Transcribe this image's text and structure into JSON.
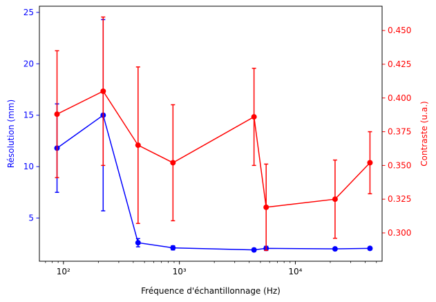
{
  "chart_data": {
    "type": "line",
    "xlabel": "Fréquence d'échantillonnage (Hz)",
    "x_scale": "log",
    "xlim": [
      62,
      56000
    ],
    "x_ticks": [
      {
        "value": 100,
        "label": "10²"
      },
      {
        "value": 1000,
        "label": "10³"
      },
      {
        "value": 10000,
        "label": "10⁴"
      }
    ],
    "grid": false,
    "legend": "none",
    "left_axis": {
      "label": "Résolution (mm)",
      "color": "#0000ff",
      "ylim": [
        0.8,
        25.6
      ],
      "ticks": [
        5,
        10,
        15,
        20,
        25
      ]
    },
    "right_axis": {
      "label": "Contraste (u.a.)",
      "color": "#ff0000",
      "ylim": [
        0.279,
        0.468
      ],
      "ticks": [
        0.3,
        0.325,
        0.35,
        0.375,
        0.4,
        0.425,
        0.45
      ],
      "tick_labels": [
        "0.300",
        "0.325",
        "0.350",
        "0.375",
        "0.400",
        "0.425",
        "0.450"
      ]
    },
    "series": [
      {
        "axis": "left",
        "color": "#0000ff",
        "x": [
          88,
          220,
          440,
          880,
          4400,
          5600,
          22000,
          44000
        ],
        "y": [
          11.8,
          15.0,
          2.6,
          2.1,
          1.9,
          2.05,
          2.0,
          2.05
        ],
        "err": [
          4.3,
          9.3,
          0.4,
          0.2,
          0.15,
          0.2,
          0.15,
          0.15
        ]
      },
      {
        "axis": "right",
        "color": "#ff0000",
        "x": [
          88,
          220,
          440,
          880,
          4400,
          5600,
          22000,
          44000
        ],
        "y": [
          0.388,
          0.405,
          0.365,
          0.352,
          0.386,
          0.319,
          0.325,
          0.352
        ],
        "err": [
          0.047,
          0.055,
          0.058,
          0.043,
          0.036,
          0.032,
          0.029,
          0.023
        ]
      }
    ]
  }
}
